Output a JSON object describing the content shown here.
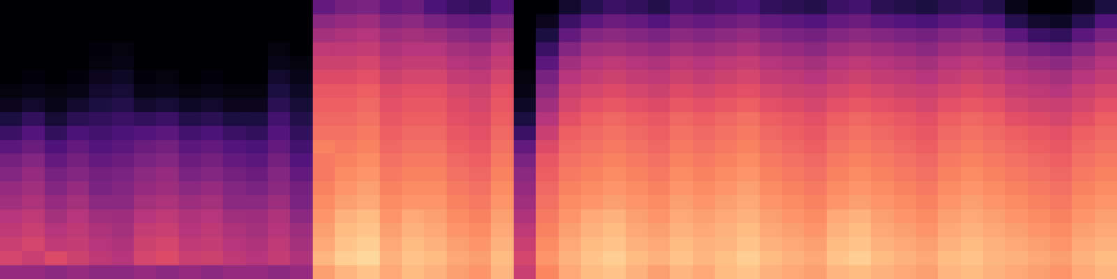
{
  "chart_data": {
    "type": "heatmap",
    "tick_labels": false,
    "color_range": [
      0,
      100
    ],
    "cells": [
      [
        42,
        42,
        40,
        42,
        40,
        40,
        42,
        40,
        42,
        40,
        42,
        42,
        40,
        42,
        80,
        85,
        88,
        82,
        86,
        84,
        80,
        78,
        85,
        55,
        75,
        82,
        86,
        88,
        84,
        80,
        85,
        82,
        86,
        88,
        84,
        82,
        80,
        85,
        86,
        84,
        82,
        80,
        85,
        86,
        84,
        82,
        80,
        78,
        82,
        85
      ],
      [
        58,
        55,
        60,
        56,
        52,
        50,
        58,
        60,
        55,
        56,
        52,
        50,
        54,
        48,
        85,
        90,
        92,
        84,
        88,
        86,
        82,
        80,
        86,
        58,
        78,
        84,
        88,
        90,
        86,
        84,
        88,
        85,
        87,
        90,
        86,
        84,
        82,
        88,
        90,
        86,
        84,
        82,
        86,
        88,
        85,
        84,
        82,
        80,
        84,
        86
      ],
      [
        55,
        58,
        52,
        54,
        50,
        48,
        56,
        58,
        52,
        54,
        50,
        48,
        52,
        46,
        82,
        88,
        90,
        82,
        86,
        84,
        80,
        78,
        84,
        55,
        76,
        82,
        86,
        88,
        84,
        82,
        86,
        84,
        85,
        88,
        84,
        82,
        80,
        86,
        88,
        84,
        82,
        80,
        84,
        86,
        84,
        82,
        80,
        78,
        82,
        84
      ],
      [
        52,
        55,
        50,
        52,
        48,
        46,
        54,
        55,
        50,
        52,
        48,
        46,
        50,
        44,
        80,
        86,
        88,
        80,
        84,
        82,
        78,
        76,
        82,
        52,
        74,
        80,
        84,
        86,
        82,
        80,
        84,
        82,
        84,
        86,
        82,
        80,
        78,
        84,
        86,
        82,
        80,
        78,
        82,
        84,
        82,
        80,
        78,
        76,
        80,
        82
      ],
      [
        50,
        52,
        46,
        50,
        45,
        44,
        50,
        52,
        48,
        50,
        45,
        44,
        48,
        40,
        78,
        84,
        86,
        78,
        82,
        80,
        76,
        74,
        80,
        48,
        72,
        78,
        82,
        84,
        80,
        78,
        82,
        80,
        82,
        84,
        80,
        78,
        76,
        82,
        84,
        80,
        78,
        76,
        80,
        82,
        80,
        78,
        76,
        74,
        78,
        80
      ],
      [
        45,
        48,
        42,
        46,
        40,
        40,
        46,
        48,
        44,
        46,
        40,
        40,
        44,
        36,
        76,
        80,
        82,
        76,
        78,
        78,
        74,
        72,
        78,
        45,
        70,
        76,
        78,
        80,
        78,
        76,
        80,
        78,
        80,
        82,
        78,
        76,
        74,
        78,
        80,
        78,
        76,
        74,
        78,
        80,
        78,
        76,
        74,
        72,
        76,
        78
      ],
      [
        42,
        45,
        38,
        42,
        36,
        38,
        42,
        44,
        40,
        42,
        38,
        36,
        40,
        34,
        74,
        78,
        80,
        74,
        76,
        76,
        72,
        70,
        76,
        42,
        68,
        74,
        76,
        78,
        76,
        74,
        78,
        76,
        78,
        80,
        76,
        74,
        72,
        76,
        78,
        76,
        74,
        72,
        76,
        78,
        76,
        74,
        72,
        70,
        74,
        76
      ],
      [
        38,
        42,
        35,
        38,
        34,
        36,
        40,
        42,
        36,
        38,
        34,
        32,
        38,
        30,
        72,
        76,
        78,
        72,
        74,
        74,
        70,
        68,
        74,
        40,
        66,
        72,
        74,
        76,
        74,
        72,
        76,
        74,
        76,
        78,
        74,
        72,
        70,
        74,
        76,
        74,
        72,
        70,
        74,
        76,
        74,
        72,
        70,
        68,
        72,
        74
      ],
      [
        34,
        38,
        30,
        34,
        30,
        32,
        36,
        38,
        32,
        34,
        30,
        28,
        34,
        26,
        72,
        74,
        76,
        70,
        72,
        72,
        68,
        66,
        72,
        36,
        64,
        70,
        72,
        74,
        72,
        70,
        74,
        72,
        74,
        76,
        72,
        70,
        68,
        72,
        74,
        72,
        70,
        68,
        72,
        74,
        72,
        70,
        68,
        66,
        70,
        72
      ],
      [
        28,
        32,
        25,
        30,
        26,
        28,
        32,
        34,
        28,
        30,
        26,
        24,
        30,
        22,
        74,
        72,
        74,
        68,
        70,
        70,
        66,
        64,
        70,
        30,
        60,
        68,
        70,
        72,
        70,
        68,
        72,
        70,
        72,
        74,
        70,
        68,
        66,
        70,
        72,
        70,
        68,
        66,
        70,
        72,
        70,
        68,
        66,
        64,
        68,
        70
      ],
      [
        20,
        26,
        18,
        24,
        22,
        24,
        26,
        28,
        22,
        24,
        20,
        18,
        26,
        18,
        70,
        70,
        72,
        66,
        68,
        68,
        64,
        62,
        68,
        20,
        55,
        66,
        68,
        70,
        68,
        66,
        70,
        68,
        70,
        72,
        68,
        66,
        64,
        68,
        70,
        68,
        66,
        64,
        68,
        70,
        68,
        66,
        64,
        62,
        66,
        68
      ],
      [
        12,
        18,
        10,
        16,
        18,
        20,
        18,
        20,
        14,
        16,
        12,
        12,
        22,
        14,
        68,
        68,
        70,
        64,
        66,
        66,
        62,
        60,
        66,
        12,
        50,
        62,
        66,
        68,
        66,
        64,
        68,
        66,
        68,
        70,
        66,
        64,
        62,
        66,
        68,
        66,
        64,
        62,
        66,
        68,
        66,
        62,
        60,
        58,
        62,
        66
      ],
      [
        5,
        8,
        4,
        8,
        12,
        14,
        8,
        10,
        6,
        8,
        5,
        5,
        16,
        10,
        66,
        66,
        68,
        62,
        64,
        64,
        60,
        58,
        64,
        6,
        45,
        58,
        62,
        64,
        62,
        60,
        64,
        62,
        64,
        66,
        62,
        60,
        58,
        62,
        64,
        62,
        60,
        58,
        62,
        64,
        62,
        58,
        56,
        55,
        58,
        62
      ],
      [
        2,
        3,
        2,
        3,
        8,
        10,
        3,
        4,
        2,
        3,
        2,
        2,
        12,
        6,
        64,
        64,
        66,
        60,
        62,
        62,
        58,
        56,
        62,
        3,
        40,
        55,
        58,
        60,
        58,
        56,
        60,
        58,
        60,
        62,
        58,
        56,
        55,
        58,
        60,
        58,
        56,
        55,
        58,
        60,
        58,
        54,
        52,
        50,
        55,
        58
      ],
      [
        0,
        1,
        0,
        1,
        5,
        6,
        1,
        2,
        0,
        1,
        0,
        0,
        8,
        4,
        60,
        60,
        62,
        56,
        58,
        58,
        54,
        52,
        58,
        2,
        35,
        50,
        54,
        56,
        54,
        52,
        56,
        54,
        56,
        58,
        54,
        52,
        50,
        54,
        56,
        54,
        52,
        50,
        54,
        56,
        54,
        50,
        48,
        46,
        50,
        54
      ],
      [
        0,
        0,
        0,
        0,
        2,
        3,
        0,
        0,
        0,
        0,
        0,
        0,
        4,
        2,
        56,
        56,
        58,
        52,
        54,
        54,
        50,
        48,
        54,
        0,
        28,
        45,
        50,
        52,
        50,
        48,
        52,
        50,
        52,
        54,
        50,
        48,
        46,
        50,
        52,
        50,
        48,
        46,
        50,
        52,
        50,
        45,
        42,
        40,
        45,
        50
      ],
      [
        0,
        0,
        0,
        0,
        1,
        2,
        0,
        0,
        0,
        0,
        0,
        0,
        2,
        0,
        52,
        52,
        54,
        48,
        50,
        50,
        46,
        44,
        50,
        0,
        20,
        38,
        45,
        46,
        44,
        42,
        46,
        44,
        46,
        48,
        44,
        42,
        40,
        44,
        46,
        44,
        42,
        40,
        44,
        46,
        44,
        38,
        34,
        32,
        38,
        44
      ],
      [
        0,
        0,
        0,
        0,
        0,
        0,
        0,
        0,
        0,
        0,
        0,
        0,
        0,
        0,
        46,
        48,
        50,
        44,
        46,
        44,
        40,
        38,
        44,
        0,
        12,
        30,
        38,
        40,
        38,
        36,
        40,
        38,
        40,
        42,
        38,
        36,
        34,
        38,
        40,
        38,
        36,
        34,
        38,
        40,
        36,
        28,
        20,
        18,
        28,
        36
      ],
      [
        0,
        0,
        0,
        0,
        0,
        0,
        0,
        0,
        0,
        0,
        0,
        0,
        0,
        0,
        40,
        42,
        44,
        38,
        40,
        36,
        32,
        30,
        36,
        0,
        5,
        20,
        28,
        32,
        30,
        26,
        32,
        30,
        32,
        34,
        30,
        28,
        26,
        30,
        32,
        28,
        26,
        24,
        28,
        30,
        26,
        15,
        8,
        6,
        15,
        26
      ],
      [
        0,
        0,
        0,
        0,
        0,
        0,
        0,
        0,
        0,
        0,
        0,
        0,
        0,
        0,
        30,
        34,
        36,
        30,
        32,
        24,
        20,
        18,
        26,
        0,
        0,
        8,
        15,
        20,
        18,
        14,
        22,
        20,
        22,
        24,
        18,
        16,
        14,
        20,
        22,
        16,
        14,
        12,
        16,
        18,
        14,
        4,
        0,
        0,
        4,
        12
      ]
    ]
  }
}
